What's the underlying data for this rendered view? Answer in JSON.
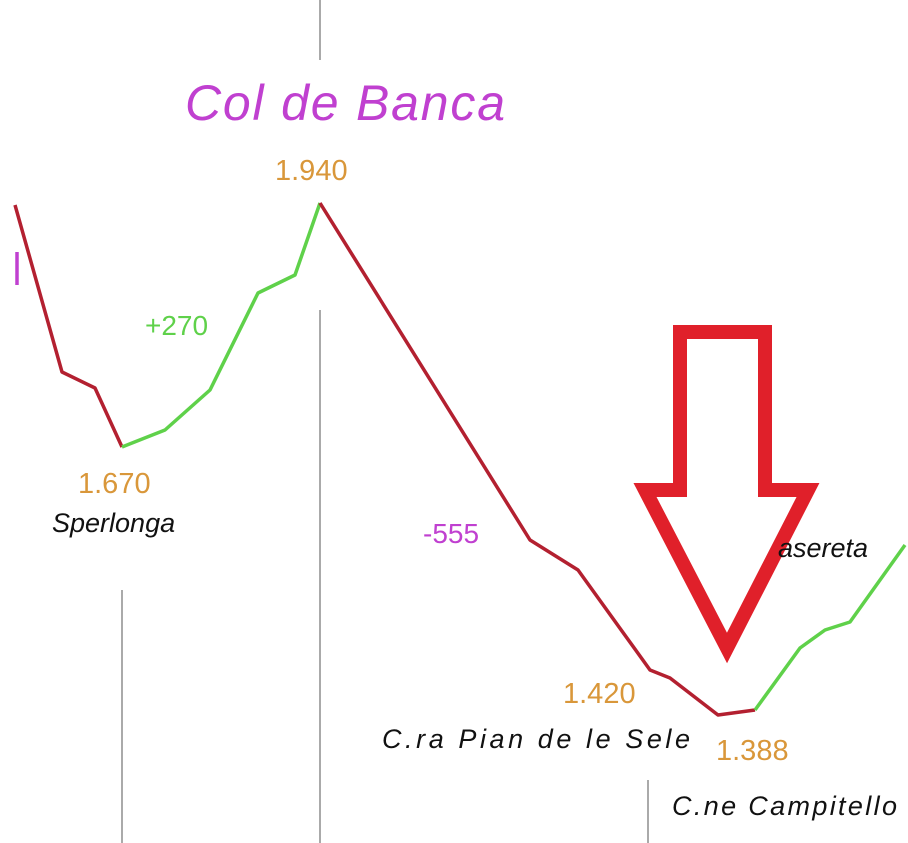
{
  "title": "Col de Banca",
  "elevations": [
    "1.940",
    "1.670",
    "1.420",
    "1.388"
  ],
  "gains": [
    "+270",
    "-555"
  ],
  "places": [
    "Sperlonga",
    "C.ra Pian de le Sele",
    "C.ne Campitello",
    "asereta"
  ]
}
